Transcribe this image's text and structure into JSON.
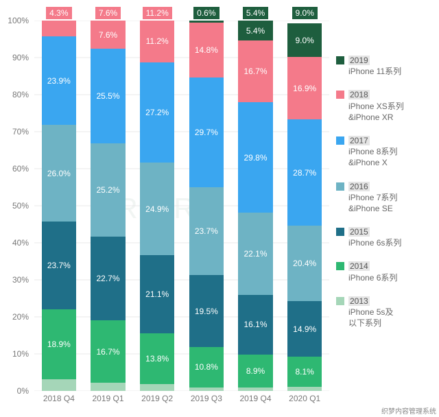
{
  "chart": {
    "type": "stacked-bar-100",
    "background_color": "#ffffff",
    "grid_color": "#e8e8e8",
    "axis_label_color": "#777777",
    "axis_label_fontsize": 12,
    "bar_inner_label_color": "#ffffff",
    "bar_inner_label_fontsize": 12,
    "ylim": [
      0,
      100
    ],
    "ytick_step": 10,
    "yticks": [
      "0%",
      "10%",
      "20%",
      "30%",
      "40%",
      "50%",
      "60%",
      "70%",
      "80%",
      "90%",
      "100%"
    ],
    "categories": [
      "2018 Q4",
      "2019 Q1",
      "2019 Q2",
      "2019 Q3",
      "2019 Q4",
      "2020 Q1"
    ],
    "series": [
      {
        "key": "s2013",
        "year": "2013",
        "desc": "iPhone 5s及\n以下系列",
        "color": "#a5d6b8"
      },
      {
        "key": "s2014",
        "year": "2014",
        "desc": "iPhone 6系列",
        "color": "#2eb872"
      },
      {
        "key": "s2015",
        "year": "2015",
        "desc": "iPhone 6s系列",
        "color": "#1f6f88"
      },
      {
        "key": "s2016",
        "year": "2016",
        "desc": "iPhone 7系列\n&iPhone SE",
        "color": "#6eb3c4"
      },
      {
        "key": "s2017",
        "year": "2017",
        "desc": "iPhone 8系列\n&iPhone X",
        "color": "#3aa6f0"
      },
      {
        "key": "s2018",
        "year": "2018",
        "desc": "iPhone XS系列\n&iPhone XR",
        "color": "#f47a8a"
      },
      {
        "key": "s2019",
        "year": "2019",
        "desc": "iPhone 11系列",
        "color": "#1e5e3e"
      }
    ],
    "legend_order": [
      "s2019",
      "s2018",
      "s2017",
      "s2016",
      "s2015",
      "s2014",
      "s2013"
    ],
    "data": {
      "2018 Q4": {
        "s2013": 3.2,
        "s2014": 18.9,
        "s2015": 23.7,
        "s2016": 26.0,
        "s2017": 23.9,
        "s2018": 4.3,
        "s2019": 0.0
      },
      "2019 Q1": {
        "s2013": 2.3,
        "s2014": 16.7,
        "s2015": 22.7,
        "s2016": 25.2,
        "s2017": 25.5,
        "s2018": 7.6,
        "s2019": 0.0
      },
      "2019 Q2": {
        "s2013": 1.8,
        "s2014": 13.8,
        "s2015": 21.1,
        "s2016": 24.9,
        "s2017": 27.2,
        "s2018": 11.2,
        "s2019": 0.0
      },
      "2019 Q3": {
        "s2013": 1.0,
        "s2014": 10.8,
        "s2015": 19.5,
        "s2016": 23.7,
        "s2017": 29.7,
        "s2018": 14.8,
        "s2019": 0.6
      },
      "2019 Q4": {
        "s2013": 1.0,
        "s2014": 8.9,
        "s2015": 16.1,
        "s2016": 22.1,
        "s2017": 29.8,
        "s2018": 16.7,
        "s2019": 5.4
      },
      "2020 Q1": {
        "s2013": 1.2,
        "s2014": 8.1,
        "s2015": 14.9,
        "s2016": 20.4,
        "s2017": 28.7,
        "s2018": 16.9,
        "s2019": 9.0
      }
    },
    "bar_label_min_pct": 5.0,
    "top_labels": {
      "2018 Q4": {
        "text": "4.3%",
        "bg": "#f47a8a"
      },
      "2019 Q1": {
        "text": "7.6%",
        "bg": "#f47a8a"
      },
      "2019 Q2": {
        "text": "11.2%",
        "bg": "#f47a8a"
      },
      "2019 Q3": {
        "text": "0.6%",
        "bg": "#1e5e3e"
      },
      "2019 Q4": {
        "text": "5.4%",
        "bg": "#1e5e3e"
      },
      "2020 Q1": {
        "text": "9.0%",
        "bg": "#1e5e3e"
      }
    },
    "legend_year_bg": "#e5e5e5",
    "legend_text_color": "#666666"
  },
  "watermarks": {
    "bottom_right": "织梦内容管理系统",
    "background": "URORA"
  }
}
